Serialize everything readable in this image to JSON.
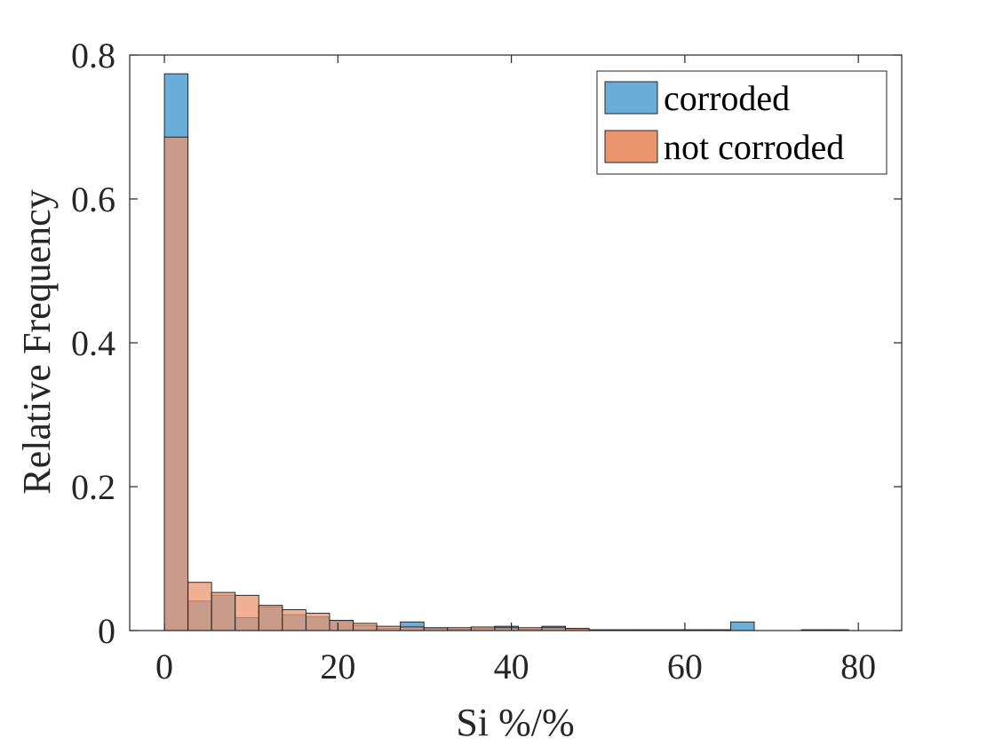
{
  "chart_data": {
    "type": "bar",
    "subtype": "overlapping-histogram",
    "title": "",
    "xlabel": "Si %/%",
    "ylabel": "Relative Frequency",
    "xlim": [
      -4,
      85
    ],
    "ylim": [
      0,
      0.8
    ],
    "xticks": [
      0,
      20,
      40,
      60,
      80
    ],
    "xtick_labels": [
      "0",
      "20",
      "40",
      "60",
      "80"
    ],
    "yticks": [
      0,
      0.2,
      0.4,
      0.6,
      0.8
    ],
    "ytick_labels": [
      "0",
      "0.2",
      "0.4",
      "0.6",
      "0.8"
    ],
    "bin_width": 2.72,
    "bin_edges_start": 0,
    "grid": false,
    "legend_position": "top-right",
    "series": [
      {
        "name": "corroded",
        "color": "#0072BD",
        "face_color": "#6AADD9",
        "values": [
          0.774,
          0.041,
          0.049,
          0.018,
          0.033,
          0.022,
          0.019,
          0.014,
          0.007,
          0.003,
          0.012,
          0.003,
          0.002,
          0.003,
          0.006,
          0.002,
          0.006,
          0.002,
          0.001,
          0.001,
          0.001,
          0.001,
          0.001,
          0.001,
          0.012,
          0.0,
          0.0,
          0.001,
          0.001
        ]
      },
      {
        "name": "not corroded",
        "color": "#D95319",
        "face_color": "#E9966F",
        "values": [
          0.686,
          0.067,
          0.053,
          0.049,
          0.035,
          0.029,
          0.024,
          0.014,
          0.01,
          0.006,
          0.005,
          0.004,
          0.004,
          0.005,
          0.004,
          0.004,
          0.004,
          0.003,
          0.001,
          0.001,
          0.001,
          0.001,
          0.001,
          0.001,
          0.0,
          0.0,
          0.0,
          0.001,
          0.001
        ]
      }
    ]
  }
}
